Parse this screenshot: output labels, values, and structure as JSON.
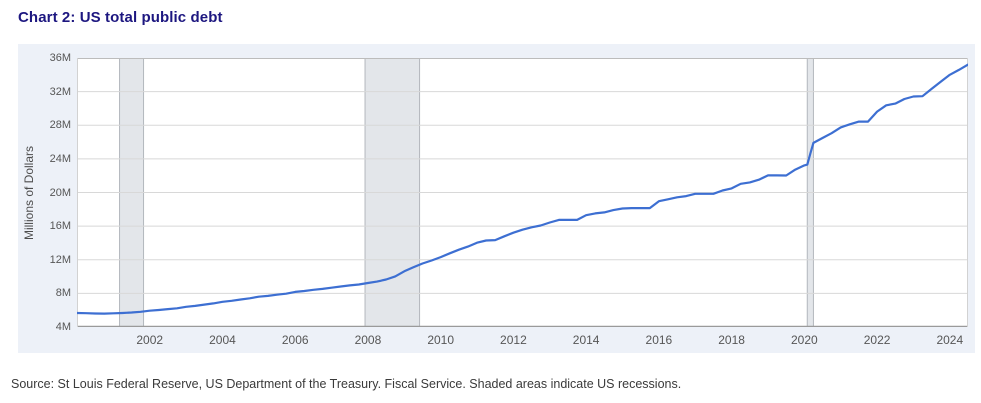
{
  "title": "Chart 2: US total public debt",
  "source_note": "Source: St Louis Federal Reserve, US Department of the Treasury. Fiscal Service. Shaded areas indicate US recessions.",
  "colors": {
    "title_text": "#1d1780",
    "container_bg": "#edf1f8",
    "plot_bg": "#ffffff",
    "line": "#3d6fd2",
    "gridline": "#d8d8d8",
    "axis_line_bottom": "#9a9a9a",
    "axis_line_top": "#bcbcbc",
    "plot_side_border": "#d2d2d2",
    "recession_fill": "#e3e6ea",
    "recession_border": "#b3b7bd",
    "tick_text": "#565656"
  },
  "chart_data": {
    "type": "line",
    "title": "Chart 2: US total public debt",
    "ylabel": "Millions of Dollars",
    "xlabel": "",
    "x_domain": [
      2000,
      2024.5
    ],
    "ylim": [
      4,
      36
    ],
    "y_ticks": [
      4,
      8,
      12,
      16,
      20,
      24,
      28,
      32,
      36
    ],
    "y_tick_labels": [
      "4M",
      "8M",
      "12M",
      "16M",
      "20M",
      "24M",
      "28M",
      "32M",
      "36M"
    ],
    "x_ticks": [
      2002,
      2004,
      2006,
      2008,
      2010,
      2012,
      2014,
      2016,
      2018,
      2020,
      2022,
      2024
    ],
    "grid": "horizontal-only",
    "legend": "none",
    "recessions": [
      {
        "start": 2001.17,
        "end": 2001.83
      },
      {
        "start": 2007.92,
        "end": 2009.42
      },
      {
        "start": 2020.08,
        "end": 2020.25
      }
    ],
    "series": [
      {
        "name": "US total public debt (millions of dollars)",
        "points": [
          [
            2000.0,
            5.67
          ],
          [
            2000.25,
            5.64
          ],
          [
            2000.5,
            5.61
          ],
          [
            2000.75,
            5.6
          ],
          [
            2001.0,
            5.63
          ],
          [
            2001.25,
            5.67
          ],
          [
            2001.5,
            5.72
          ],
          [
            2001.75,
            5.81
          ],
          [
            2002.0,
            5.94
          ],
          [
            2002.25,
            6.02
          ],
          [
            2002.5,
            6.13
          ],
          [
            2002.75,
            6.23
          ],
          [
            2003.0,
            6.4
          ],
          [
            2003.25,
            6.51
          ],
          [
            2003.5,
            6.67
          ],
          [
            2003.75,
            6.81
          ],
          [
            2004.0,
            7.0
          ],
          [
            2004.25,
            7.12
          ],
          [
            2004.5,
            7.27
          ],
          [
            2004.75,
            7.41
          ],
          [
            2005.0,
            7.6
          ],
          [
            2005.25,
            7.7
          ],
          [
            2005.5,
            7.84
          ],
          [
            2005.75,
            7.96
          ],
          [
            2006.0,
            8.17
          ],
          [
            2006.25,
            8.28
          ],
          [
            2006.5,
            8.42
          ],
          [
            2006.75,
            8.53
          ],
          [
            2007.0,
            8.68
          ],
          [
            2007.25,
            8.82
          ],
          [
            2007.5,
            8.95
          ],
          [
            2007.75,
            9.05
          ],
          [
            2008.0,
            9.23
          ],
          [
            2008.25,
            9.4
          ],
          [
            2008.5,
            9.65
          ],
          [
            2008.75,
            10.02
          ],
          [
            2009.0,
            10.63
          ],
          [
            2009.25,
            11.1
          ],
          [
            2009.5,
            11.55
          ],
          [
            2009.75,
            11.91
          ],
          [
            2010.0,
            12.31
          ],
          [
            2010.25,
            12.77
          ],
          [
            2010.5,
            13.2
          ],
          [
            2010.75,
            13.56
          ],
          [
            2011.0,
            14.03
          ],
          [
            2011.25,
            14.29
          ],
          [
            2011.5,
            14.34
          ],
          [
            2011.75,
            14.79
          ],
          [
            2012.0,
            15.22
          ],
          [
            2012.25,
            15.58
          ],
          [
            2012.5,
            15.86
          ],
          [
            2012.75,
            16.07
          ],
          [
            2013.0,
            16.43
          ],
          [
            2013.25,
            16.74
          ],
          [
            2013.5,
            16.74
          ],
          [
            2013.75,
            16.74
          ],
          [
            2014.0,
            17.3
          ],
          [
            2014.25,
            17.51
          ],
          [
            2014.5,
            17.63
          ],
          [
            2014.75,
            17.91
          ],
          [
            2015.0,
            18.1
          ],
          [
            2015.25,
            18.15
          ],
          [
            2015.5,
            18.15
          ],
          [
            2015.75,
            18.15
          ],
          [
            2016.0,
            18.96
          ],
          [
            2016.25,
            19.19
          ],
          [
            2016.5,
            19.43
          ],
          [
            2016.75,
            19.57
          ],
          [
            2017.0,
            19.85
          ],
          [
            2017.25,
            19.85
          ],
          [
            2017.5,
            19.84
          ],
          [
            2017.75,
            20.24
          ],
          [
            2018.0,
            20.49
          ],
          [
            2018.25,
            21.03
          ],
          [
            2018.5,
            21.2
          ],
          [
            2018.75,
            21.52
          ],
          [
            2019.0,
            22.03
          ],
          [
            2019.25,
            22.03
          ],
          [
            2019.5,
            22.02
          ],
          [
            2019.75,
            22.72
          ],
          [
            2020.0,
            23.22
          ],
          [
            2020.08,
            23.32
          ],
          [
            2020.17,
            24.7
          ],
          [
            2020.25,
            25.9
          ],
          [
            2020.5,
            26.48
          ],
          [
            2020.75,
            27.06
          ],
          [
            2021.0,
            27.75
          ],
          [
            2021.25,
            28.11
          ],
          [
            2021.5,
            28.43
          ],
          [
            2021.75,
            28.43
          ],
          [
            2022.0,
            29.62
          ],
          [
            2022.25,
            30.37
          ],
          [
            2022.5,
            30.57
          ],
          [
            2022.75,
            31.12
          ],
          [
            2023.0,
            31.42
          ],
          [
            2023.25,
            31.46
          ],
          [
            2023.5,
            32.33
          ],
          [
            2023.75,
            33.17
          ],
          [
            2024.0,
            34.0
          ],
          [
            2024.25,
            34.58
          ],
          [
            2024.5,
            35.21
          ]
        ]
      }
    ]
  }
}
